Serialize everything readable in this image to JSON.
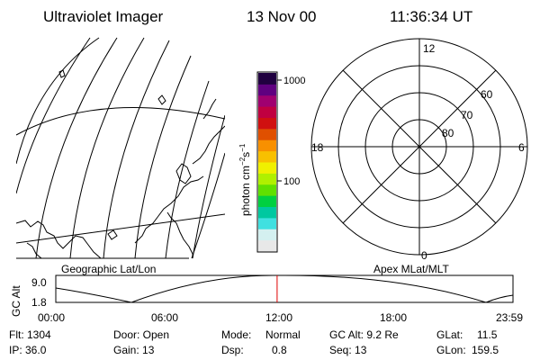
{
  "header": {
    "title": "Ultraviolet Imager",
    "date": "13 Nov 00",
    "time": "11:36:34 UT"
  },
  "colorbar": {
    "unit_label": "photon cm",
    "unit_sup1": "−2",
    "unit_mid": "s",
    "unit_sup2": "−1",
    "tick_labels": [
      "1000",
      "100"
    ],
    "colors": [
      "#e8e8e8",
      "#d4f0f0",
      "#40e0e0",
      "#00c8a0",
      "#00d040",
      "#60e000",
      "#b0f000",
      "#f0f000",
      "#f8c000",
      "#f89000",
      "#e05000",
      "#d01010",
      "#c00040",
      "#a00070",
      "#600080",
      "#200040"
    ]
  },
  "map": {
    "label": "Geographic Lat/Lon"
  },
  "polar": {
    "label": "Apex MLat/MLT",
    "mlt_labels": {
      "top": "12",
      "left": "18",
      "right": "6",
      "bottom": "0"
    },
    "lat_labels": [
      "60",
      "70",
      "80"
    ]
  },
  "orbit": {
    "ylabel": "GC Alt",
    "ytick_top": "9.0",
    "ytick_bottom": "1.8",
    "xticks": [
      "00:00",
      "06:00",
      "12:00",
      "18:00",
      "23:59"
    ],
    "marker_time": "11:36:34",
    "marker_color": "#e00000"
  },
  "info": {
    "flt": "Flt: 1304",
    "ip": "IP: 36.0",
    "door": "Door: Open",
    "gain": "Gain: 13",
    "mode_label": "Mode:",
    "mode_value": "Normal",
    "dsp_label": "Dsp:",
    "dsp_value": "0.8",
    "gcalt": "GC Alt: 9.2 Re",
    "seq": "Seq: 13",
    "glat_label": "GLat:",
    "glat_value": "11.5",
    "glon_label": "GLon:",
    "glon_value": "159.5"
  }
}
